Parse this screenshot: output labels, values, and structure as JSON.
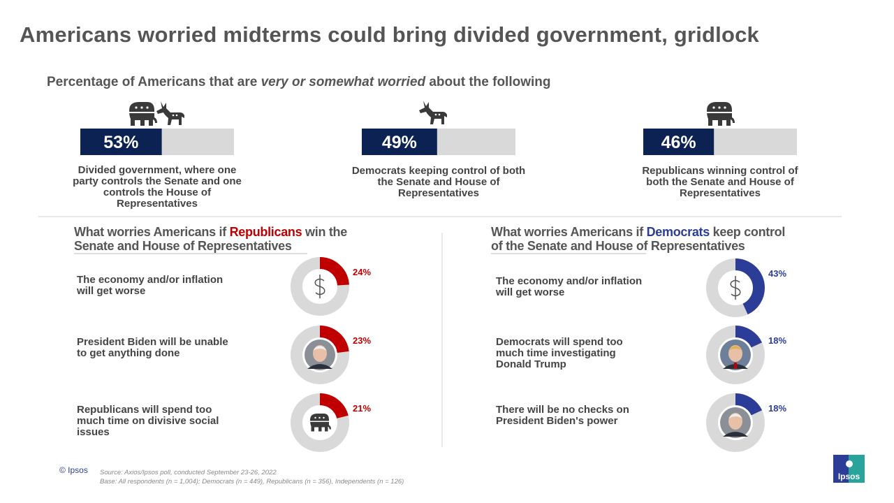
{
  "title": "Americans worried midterms could bring divided government, gridlock",
  "subtitle": [
    "Percentage of Americans that are ",
    "very or somewhat worried",
    " about the following"
  ],
  "chart_data": [
    {
      "type": "bar",
      "categories": [
        "Divided government, where one party controls the Senate and one controls the House of Representatives",
        "Democrats keeping control of both the Senate and House of Representatives",
        "Republicans winning control of both the Senate and House of Representatives"
      ],
      "values": [
        53,
        49,
        46
      ],
      "value_labels": [
        "53%",
        "49%",
        "46%"
      ],
      "xlim": [
        0,
        100
      ],
      "color": "#0c2252",
      "track_color": "#d9d9d9"
    },
    {
      "type": "donut",
      "title": [
        "What worries Americans if ",
        "Republicans",
        " win the Senate and House of Representatives"
      ],
      "categories": [
        "The economy and/or inflation will get worse",
        "President Biden will be unable to get anything done",
        "Republicans will spend too much time on divisive social issues"
      ],
      "values": [
        24,
        23,
        21
      ],
      "value_labels": [
        "24%",
        "23%",
        "21%"
      ],
      "color": "#c00000",
      "track_color": "#d9d9d9"
    },
    {
      "type": "donut",
      "title": [
        "What worries Americans if ",
        "Democrats",
        " keep control of the Senate and House of Representatives"
      ],
      "categories": [
        "The economy and/or inflation will get worse",
        "Democrats will spend too much time investigating Donald Trump",
        "There will be no checks on President Biden's power"
      ],
      "values": [
        43,
        18,
        18
      ],
      "value_labels": [
        "43%",
        "18%",
        "18%"
      ],
      "color": "#2b3d97",
      "track_color": "#d9d9d9"
    }
  ],
  "footer": {
    "copyright": "© Ipsos",
    "source": "Source: Axios/Ipsos poll, conducted September 23-26, 2022",
    "base": "Base: All respondents (n = 1,004); Democrats (n = 449), Republicans (n = 356), Independents (n = 126)",
    "logo": "Ipsos"
  }
}
